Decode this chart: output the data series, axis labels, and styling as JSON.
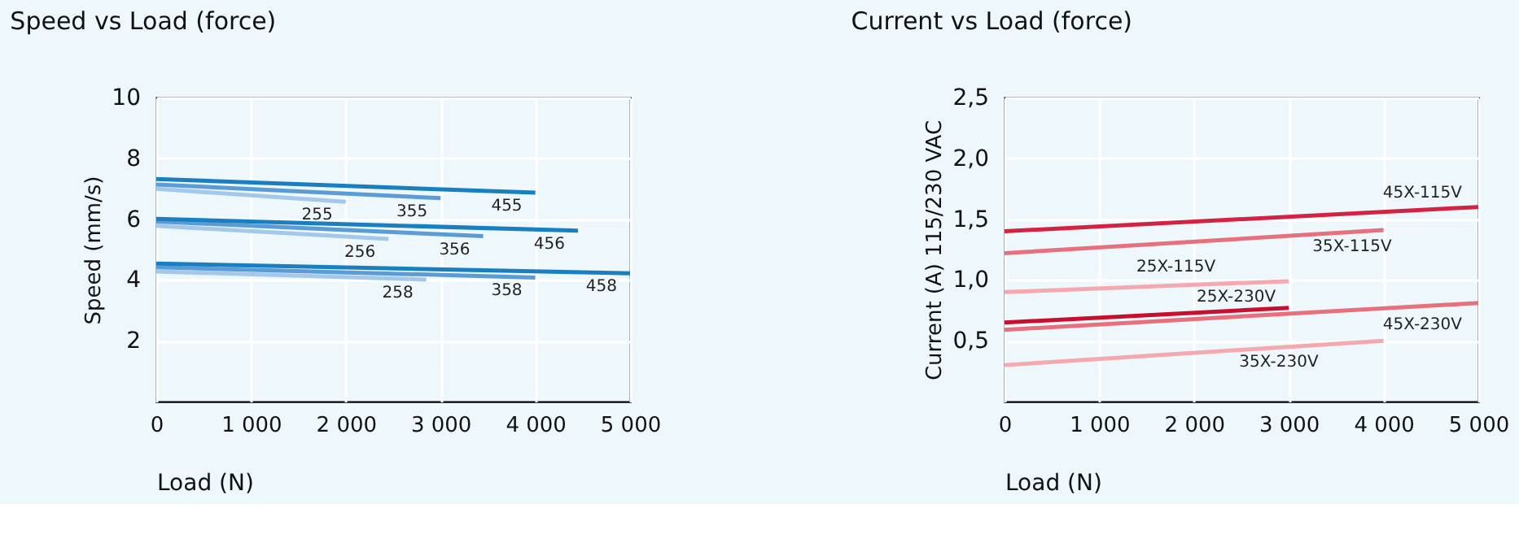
{
  "chart_data": [
    {
      "type": "line",
      "title": "Speed vs Load (force)",
      "xlabel": "Load (N)",
      "ylabel": "Speed (mm/s)",
      "xlim": [
        0,
        5000
      ],
      "ylim": [
        0,
        10
      ],
      "xticks": [
        0,
        {
          "value": 1000,
          "label": "1 000"
        },
        {
          "value": 2000,
          "label": "2 000"
        },
        {
          "value": 3000,
          "label": "3 000"
        },
        {
          "value": 4000,
          "label": "4 000"
        },
        {
          "value": 5000,
          "label": "5 000"
        }
      ],
      "yticks": [
        2,
        4,
        6,
        8,
        10
      ],
      "grid": true,
      "legend": false,
      "marker": "none",
      "line_style": "solid",
      "series": [
        {
          "name": "255",
          "color": "#a4c8ec",
          "x": [
            0,
            2000
          ],
          "values": [
            7.0,
            6.57
          ]
        },
        {
          "name": "355",
          "color": "#5c9cd6",
          "x": [
            0,
            3000
          ],
          "values": [
            7.14,
            6.69
          ]
        },
        {
          "name": "455",
          "color": "#1a7fc0",
          "x": [
            0,
            4000
          ],
          "values": [
            7.32,
            6.87
          ]
        },
        {
          "name": "256",
          "color": "#a4c8ec",
          "x": [
            0,
            2450
          ],
          "values": [
            5.78,
            5.35
          ]
        },
        {
          "name": "356",
          "color": "#5c9cd6",
          "x": [
            0,
            3450
          ],
          "values": [
            5.92,
            5.44
          ]
        },
        {
          "name": "456",
          "color": "#1a7fc0",
          "x": [
            0,
            4450
          ],
          "values": [
            6.01,
            5.62
          ]
        },
        {
          "name": "258",
          "color": "#a4c8ec",
          "x": [
            0,
            2850
          ],
          "values": [
            4.28,
            4.01
          ]
        },
        {
          "name": "358",
          "color": "#5c9cd6",
          "x": [
            0,
            4000
          ],
          "values": [
            4.42,
            4.08
          ]
        },
        {
          "name": "458",
          "color": "#1a7fc0",
          "x": [
            0,
            5000
          ],
          "values": [
            4.54,
            4.22
          ]
        }
      ]
    },
    {
      "type": "line",
      "title": "Current vs Load (force)",
      "xlabel": "Load (N)",
      "ylabel": "Current (A) 115/230 VAC",
      "xlim": [
        0,
        5000
      ],
      "ylim": [
        0,
        2.5
      ],
      "xticks": [
        0,
        {
          "value": 1000,
          "label": "1 000"
        },
        {
          "value": 2000,
          "label": "2 000"
        },
        {
          "value": 3000,
          "label": "3 000"
        },
        {
          "value": 4000,
          "label": "4 000"
        },
        {
          "value": 5000,
          "label": "5 000"
        }
      ],
      "yticks": [
        {
          "value": 0.5,
          "label": "0,5"
        },
        {
          "value": 1.0,
          "label": "1,0"
        },
        {
          "value": 1.5,
          "label": "1,5"
        },
        {
          "value": 2.0,
          "label": "2,0"
        },
        {
          "value": 2.5,
          "label": "2,5"
        }
      ],
      "grid": true,
      "legend": false,
      "marker": "none",
      "line_style": "solid",
      "series": [
        {
          "name": "45X-115V",
          "color": "#d42340",
          "x": [
            0,
            5000
          ],
          "values": [
            1.4,
            1.6
          ]
        },
        {
          "name": "35X-115V",
          "color": "#e8707c",
          "x": [
            0,
            4000
          ],
          "values": [
            1.22,
            1.41
          ]
        },
        {
          "name": "25X-115V",
          "color": "#f5a8ae",
          "x": [
            0,
            3000
          ],
          "values": [
            0.9,
            0.99
          ]
        },
        {
          "name": "25X-230V",
          "color": "#c8102e",
          "x": [
            0,
            3000
          ],
          "values": [
            0.65,
            0.77
          ]
        },
        {
          "name": "45X-230V",
          "color": "#e8707c",
          "x": [
            0,
            5000
          ],
          "values": [
            0.59,
            0.81
          ]
        },
        {
          "name": "35X-230V",
          "color": "#f5a8ae",
          "x": [
            0,
            4000
          ],
          "values": [
            0.3,
            0.5
          ]
        }
      ]
    }
  ]
}
